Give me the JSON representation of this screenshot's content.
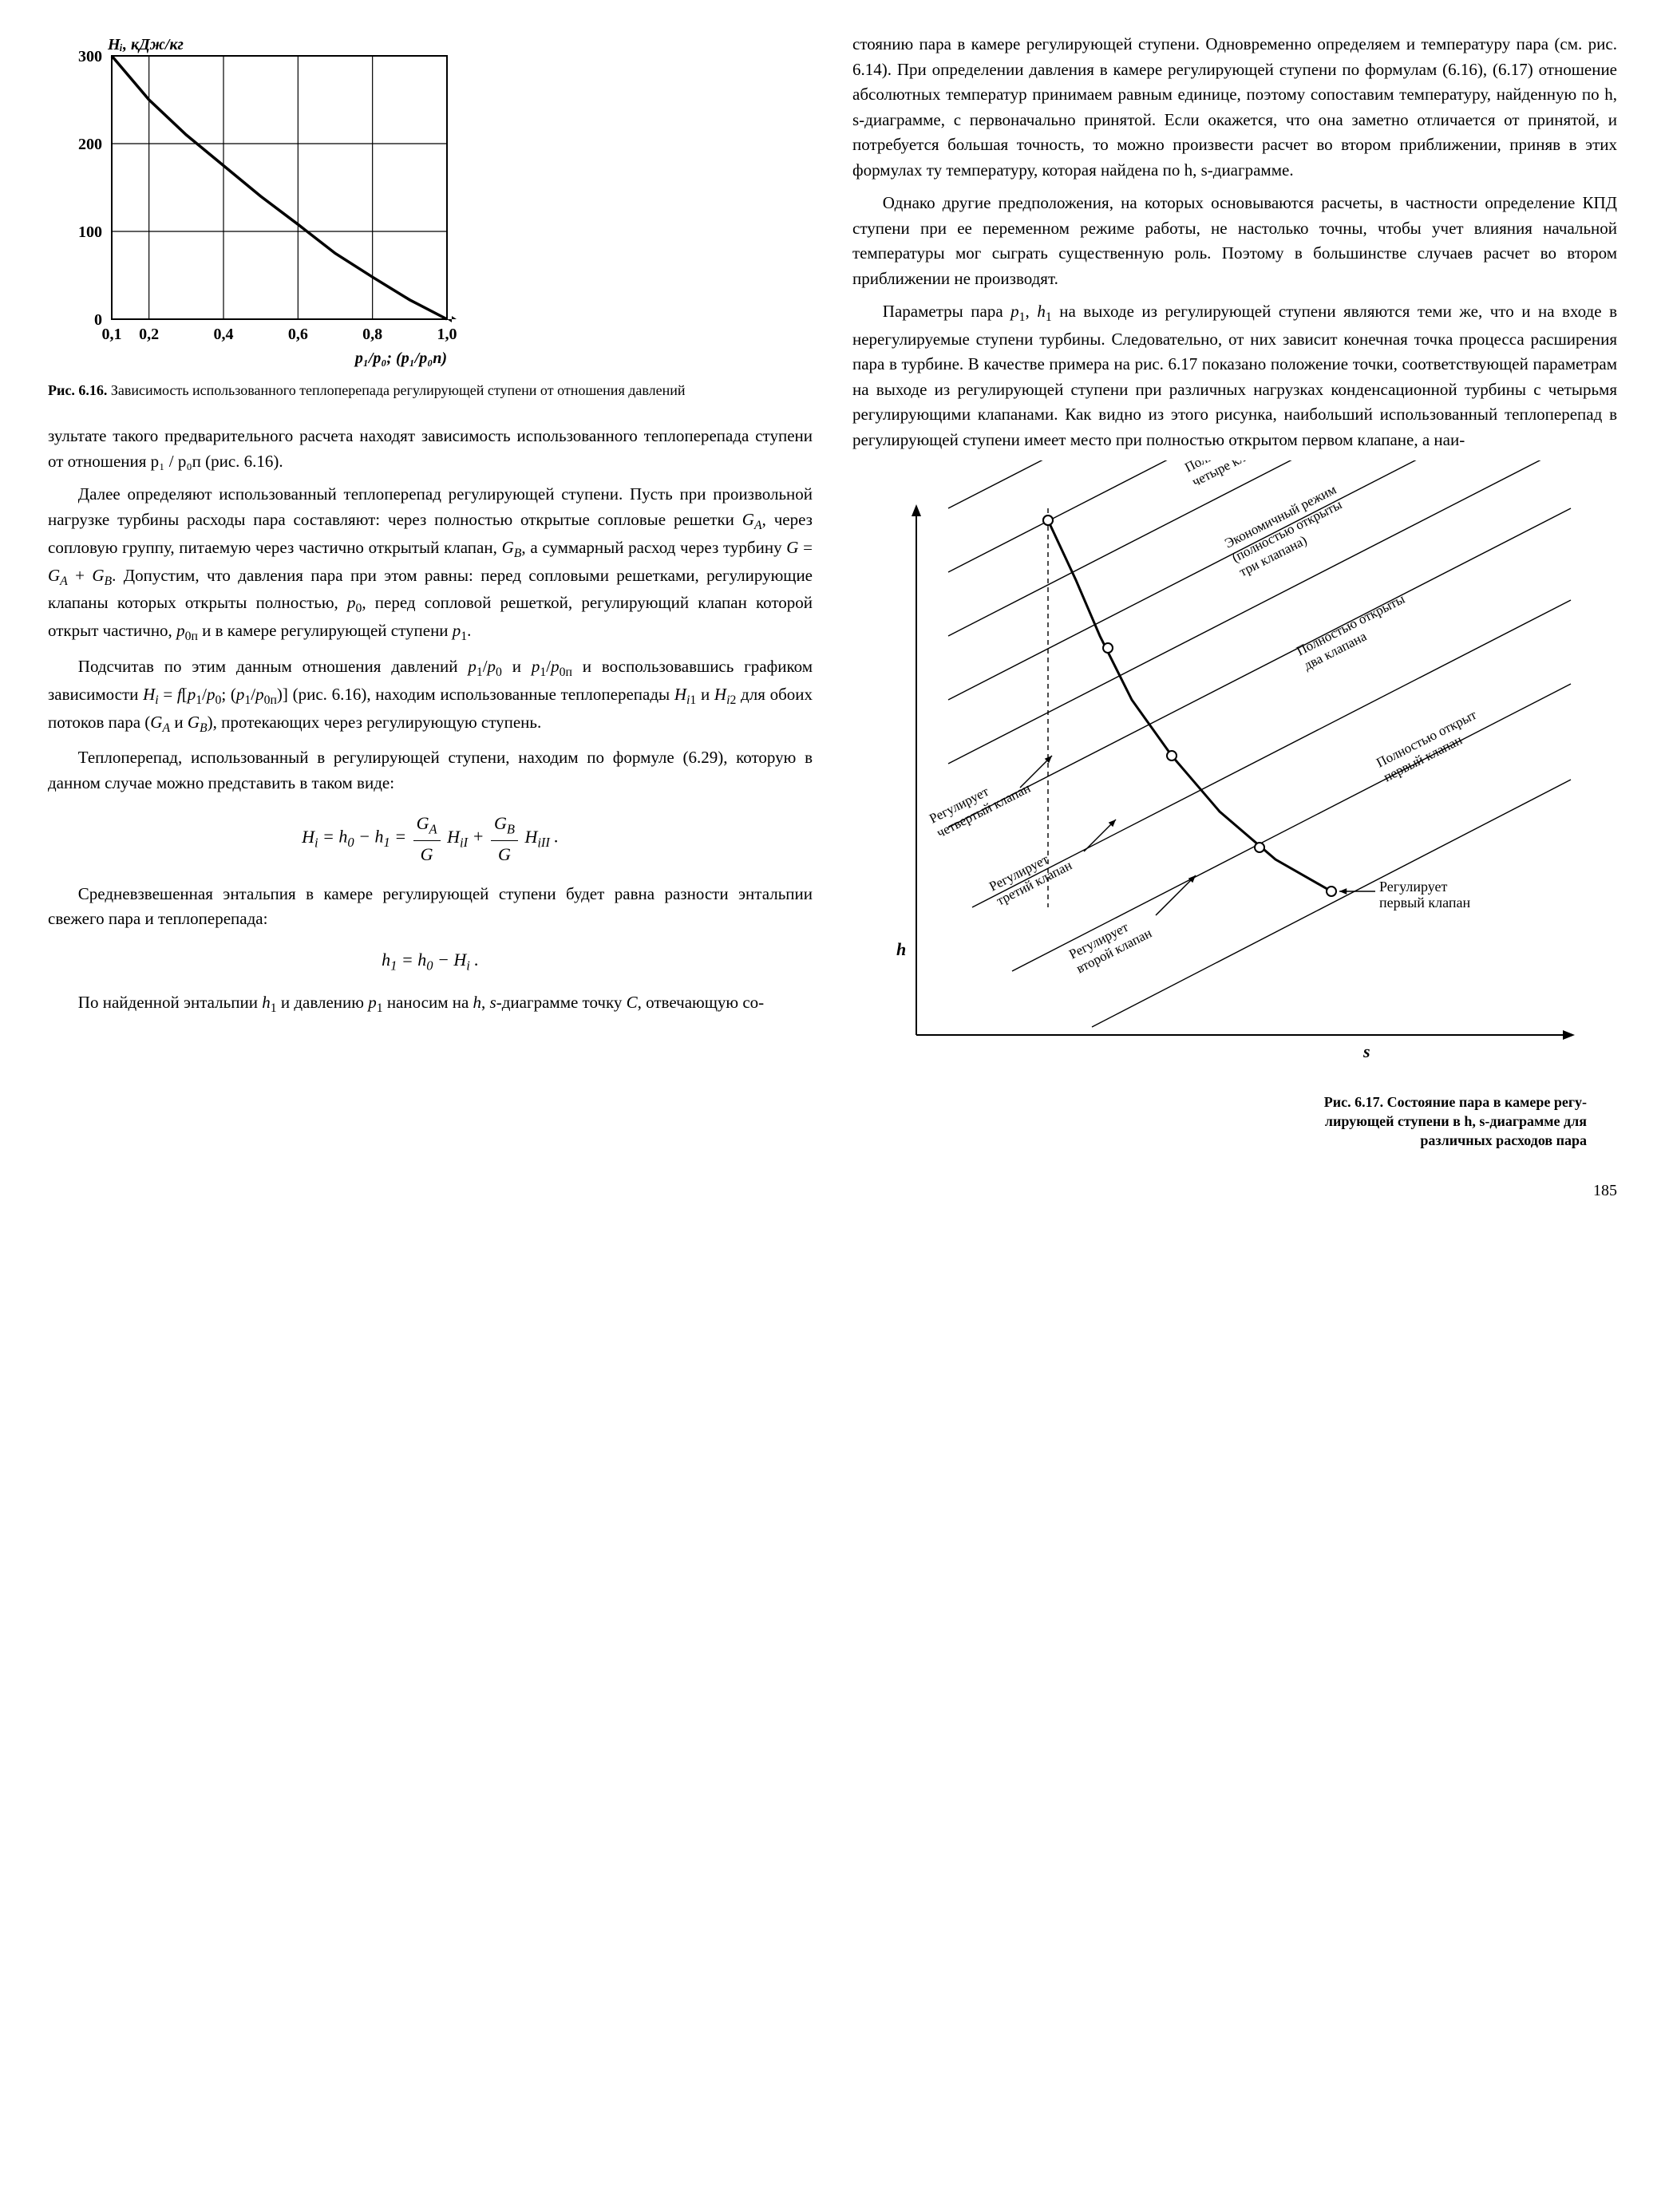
{
  "figure616": {
    "type": "line",
    "y_label": "Hᵢ, кДж/кг",
    "x_label": "p₁/p₀; (p₁/p₀п)",
    "x_ticks": [
      "0,1",
      "0,2",
      "0,4",
      "0,6",
      "0,8",
      "1,0"
    ],
    "y_ticks": [
      "0",
      "100",
      "200",
      "300"
    ],
    "xlim": [
      0.1,
      1.0
    ],
    "ylim": [
      0,
      300
    ],
    "curve": [
      [
        0.1,
        300
      ],
      [
        0.14,
        280
      ],
      [
        0.2,
        250
      ],
      [
        0.3,
        210
      ],
      [
        0.4,
        175
      ],
      [
        0.5,
        140
      ],
      [
        0.6,
        108
      ],
      [
        0.7,
        75
      ],
      [
        0.8,
        48
      ],
      [
        0.9,
        22
      ],
      [
        1.0,
        0
      ]
    ],
    "line_width": 3.5,
    "axis_width": 2,
    "grid": true,
    "background_color": "#ffffff",
    "line_color": "#000000",
    "caption_prefix": "Рис. 6.16.",
    "caption": "Зависимость использованного теплоперепада регулирующей ступени от отношения давлений"
  },
  "figure617": {
    "type": "hs-diagram",
    "axis_h": "h",
    "axis_s": "s",
    "labels": [
      "Полностью открыты четыре клапана",
      "Экономичный режим (полностью открыты три клапана)",
      "Полностью открыты два клапана",
      "Полностью открыт первый клапан",
      "Регулирует четвертый клапан",
      "Регулирует третий клапан",
      "Регулирует второй клапан",
      "Регулирует первый клапан"
    ],
    "caption_prefix": "Рис. 6.17.",
    "caption": "Состояние пара в камере регулирующей ступени в h, s-диаграмме для различных расходов пара",
    "line_color": "#000000"
  },
  "texts": {
    "leftP1": "зультате такого предварительного расчета находят зависимость использованного теплоперепада ступени от отношения p₁ / p₀п (рис. 6.16).",
    "leftP2a": "Далее определяют использованный теплоперепад регулирующей ступени. Пусть при произвольной нагрузке турбины расходы пара составляют: через полностью открытые сопловые решетки ",
    "leftP2b": ", через сопловую группу, питаемую через частично открытый клапан, ",
    "leftP2c": ", а суммарный расход через турбину ",
    "leftP2d": ". Допустим, что давления пара при этом равны: перед сопловыми решетками, регулирующие клапаны которых открыты полностью, ",
    "leftP2e": ", перед сопловой решеткой, регулирующий клапан которой открыт частично, ",
    "leftP2f": " и в камере регулирующей ступени ",
    "leftP3a": "Подсчитав по этим данным отношения давлений ",
    "leftP3b": " и воспользовавшись графиком зависимости ",
    "leftP3c": " (рис. 6.16), находим использованные теплоперепады ",
    "leftP3d": " для обоих потоков пара (",
    "leftP3e": "), протекающих через регулирующую ступень.",
    "leftP4": "Теплоперепад, использованный в регулирующей ступени, находим по формуле (6.29), которую в данном случае можно представить в таком виде:",
    "leftP5": "Средневзвешенная энтальпия в камере регулирующей ступени будет равна разности энтальпии свежего пара и теплоперепада:",
    "leftP6a": "По найденной энтальпии ",
    "leftP6b": " и давлению ",
    "leftP6c": " наносим на ",
    "leftP6d": "-диаграмме точку ",
    "leftP6e": ", отвечающую со-",
    "rightP1": "стоянию пара в камере регулирующей ступени. Одновременно определяем и температуру пара (см. рис. 6.14). При определении давления в камере регулирующей ступени по формулам (6.16), (6.17) отношение абсолютных температур принимаем равным единице, поэтому сопоставим температуру, найденную по h, s-диаграмме, с первоначально принятой. Если окажется, что она заметно отличается от принятой, и потребуется большая точность, то можно произвести расчет во втором приближении, приняв в этих формулах ту температуру, которая найдена по h, s-диаграмме.",
    "rightP2": "Однако другие предположения, на которых основываются расчеты, в частности определение КПД ступени при ее переменном режиме работы, не настолько точны, чтобы учет влияния начальной температуры мог сыграть существенную роль. Поэтому в большинстве случаев расчет во втором приближении не производят.",
    "rightP3a": "Параметры пара ",
    "rightP3b": " на выходе из регулирующей ступени являются теми же, что и на входе в нерегулируемые ступени турбины. Следовательно, от них зависит конечная точка процесса расширения пара в турбине. В качестве примера на рис. 6.17 показано положение точки, соответствующей параметрам на выходе из регулирующей ступени при различных нагрузках конденсационной турбины с четырьмя регулирующими клапанами. Как видно из этого рисунка, наибольший использованный теплоперепад в регулирующей ступени имеет место при полностью открытом первом клапане, а наи-"
  },
  "pagenum": "185"
}
